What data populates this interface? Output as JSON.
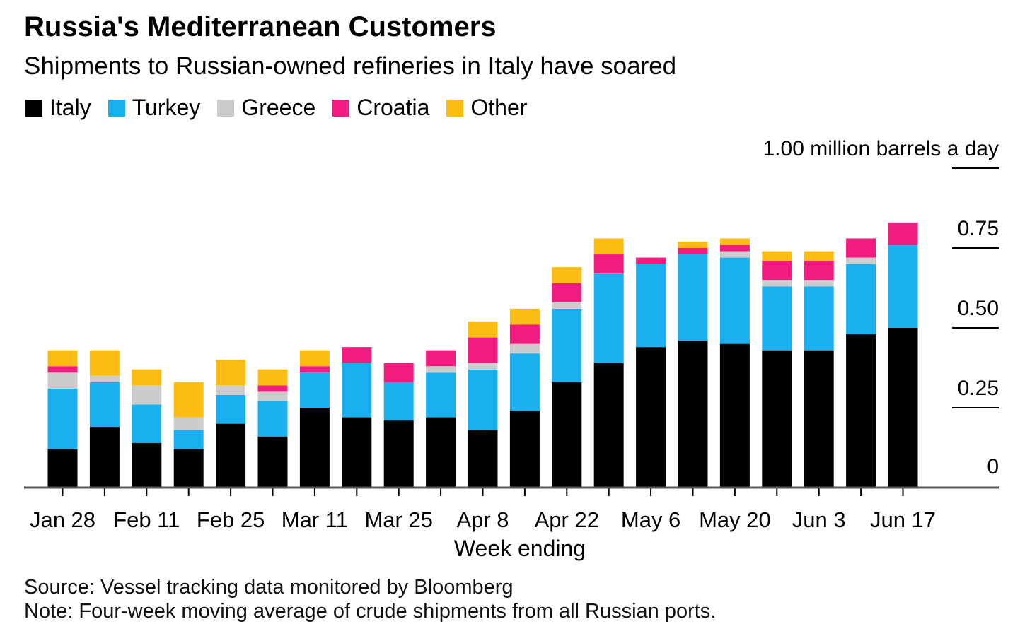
{
  "header": {
    "title": "Russia's Mediterranean Customers",
    "subtitle": "Shipments to Russian-owned refineries in Italy have soared"
  },
  "legend": [
    {
      "label": "Italy",
      "color": "#000000"
    },
    {
      "label": "Turkey",
      "color": "#1ab0ef"
    },
    {
      "label": "Greece",
      "color": "#cccccc"
    },
    {
      "label": "Croatia",
      "color": "#f21b7f"
    },
    {
      "label": "Other",
      "color": "#fbbd13"
    }
  ],
  "footer": {
    "source": "Source: Vessel tracking data monitored by Bloomberg",
    "note": "Note: Four-week moving average of crude shipments from all Russian ports."
  },
  "chart_data": {
    "type": "bar",
    "stacked": true,
    "xlabel": "Week ending",
    "ylabel": "million barrels a day",
    "ylim": [
      0,
      1.0
    ],
    "yticks": [
      {
        "value": 1.0,
        "label": "1.00 million barrels a day"
      },
      {
        "value": 0.75,
        "label": "0.75"
      },
      {
        "value": 0.5,
        "label": "0.50"
      },
      {
        "value": 0.25,
        "label": "0.25"
      },
      {
        "value": 0,
        "label": "0"
      }
    ],
    "grid": false,
    "legend_position": "top-left",
    "categories": [
      "Jan 28",
      "Feb 4",
      "Feb 11",
      "Feb 18",
      "Feb 25",
      "Mar 4",
      "Mar 11",
      "Mar 18",
      "Mar 25",
      "Apr 1",
      "Apr 8",
      "Apr 15",
      "Apr 22",
      "Apr 29",
      "May 6",
      "May 13",
      "May 20",
      "May 27",
      "Jun 3",
      "Jun 10",
      "Jun 17"
    ],
    "category_labels_shown": [
      "Jan 28",
      "Feb 11",
      "Feb 25",
      "Mar 11",
      "Mar 25",
      "Apr 8",
      "Apr 22",
      "May 6",
      "May 20",
      "Jun 3",
      "Jun 17"
    ],
    "series": [
      {
        "name": "Italy",
        "color": "#000000",
        "values": [
          0.12,
          0.19,
          0.14,
          0.12,
          0.2,
          0.16,
          0.25,
          0.22,
          0.21,
          0.22,
          0.18,
          0.24,
          0.33,
          0.39,
          0.44,
          0.46,
          0.45,
          0.43,
          0.43,
          0.48,
          0.5
        ]
      },
      {
        "name": "Turkey",
        "color": "#1ab0ef",
        "values": [
          0.19,
          0.14,
          0.12,
          0.06,
          0.09,
          0.11,
          0.11,
          0.17,
          0.12,
          0.14,
          0.19,
          0.18,
          0.23,
          0.28,
          0.26,
          0.27,
          0.27,
          0.2,
          0.2,
          0.22,
          0.26
        ]
      },
      {
        "name": "Greece",
        "color": "#cccccc",
        "values": [
          0.05,
          0.02,
          0.06,
          0.04,
          0.03,
          0.03,
          0.0,
          0.0,
          0.0,
          0.02,
          0.02,
          0.03,
          0.02,
          0.0,
          0.0,
          0.0,
          0.02,
          0.02,
          0.02,
          0.02,
          0.0
        ]
      },
      {
        "name": "Croatia",
        "color": "#f21b7f",
        "values": [
          0.02,
          0.0,
          0.0,
          0.0,
          0.0,
          0.02,
          0.02,
          0.05,
          0.06,
          0.05,
          0.08,
          0.06,
          0.06,
          0.06,
          0.02,
          0.02,
          0.02,
          0.06,
          0.06,
          0.06,
          0.07
        ]
      },
      {
        "name": "Other",
        "color": "#fbbd13",
        "values": [
          0.05,
          0.08,
          0.05,
          0.11,
          0.08,
          0.05,
          0.05,
          0.0,
          0.0,
          0.0,
          0.05,
          0.05,
          0.05,
          0.05,
          0.0,
          0.02,
          0.02,
          0.03,
          0.03,
          0.0,
          0.0
        ]
      }
    ]
  }
}
